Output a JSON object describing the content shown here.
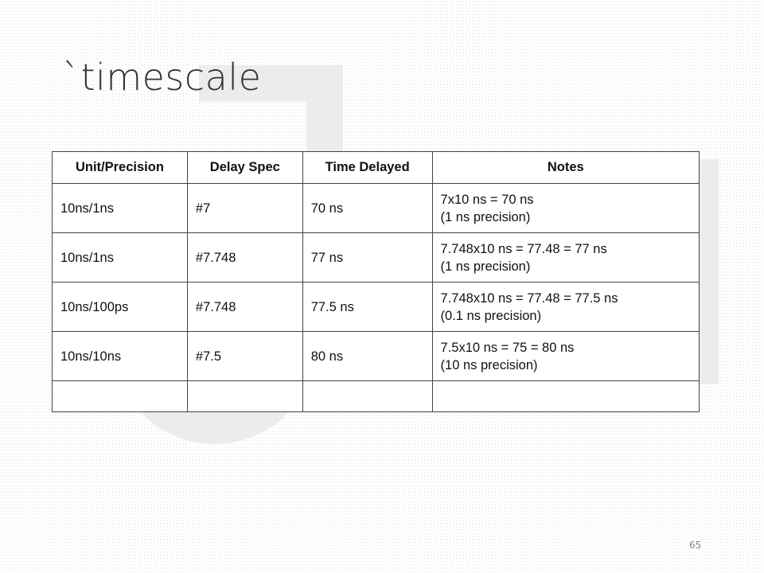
{
  "slide": {
    "title": "`timescale",
    "page_number": "65"
  },
  "table": {
    "headers": [
      "Unit/Precision",
      "Delay Spec",
      "Time Delayed",
      "Notes"
    ],
    "rows": [
      {
        "unit_precision": "10ns/1ns",
        "delay_spec": "#7",
        "time_delayed": "70 ns",
        "notes_line1": "7x10 ns = 70 ns",
        "notes_line2": "(1 ns precision)"
      },
      {
        "unit_precision": "10ns/1ns",
        "delay_spec": "#7.748",
        "time_delayed": "77 ns",
        "notes_line1": "7.748x10 ns  = 77.48 = 77 ns",
        "notes_line2": "(1 ns precision)"
      },
      {
        "unit_precision": "10ns/100ps",
        "delay_spec": "#7.748",
        "time_delayed": "77.5 ns",
        "notes_line1": "7.748x10 ns  = 77.48 = 77.5 ns",
        "notes_line2": "(0.1 ns precision)"
      },
      {
        "unit_precision": "10ns/10ns",
        "delay_spec": "#7.5",
        "time_delayed": "80 ns",
        "notes_line1": "7.5x10 ns  = 75 = 80 ns",
        "notes_line2": "(10 ns precision)"
      }
    ]
  }
}
